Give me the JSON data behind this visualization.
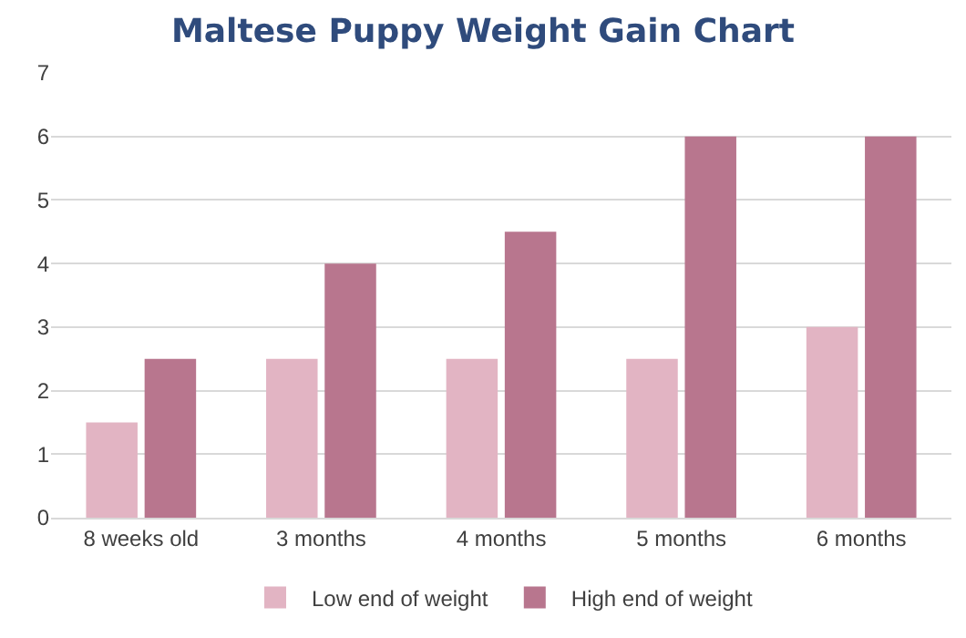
{
  "chart_data": {
    "type": "bar",
    "title": "Maltese Puppy Weight Gain Chart",
    "categories": [
      "8 weeks old",
      "3 months",
      "4 months",
      "5 months",
      "6 months"
    ],
    "series": [
      {
        "name": "Low end of weight",
        "color": "#e2b4c3",
        "values": [
          1.5,
          2.5,
          2.5,
          2.5,
          3
        ]
      },
      {
        "name": "High end of weight",
        "color": "#b8768e",
        "values": [
          2.5,
          4,
          4.5,
          6,
          6
        ]
      }
    ],
    "ylim": [
      0,
      7
    ],
    "yticks": [
      0,
      1,
      2,
      3,
      4,
      5,
      6,
      7
    ],
    "grid": "y",
    "legend": "bottom"
  }
}
